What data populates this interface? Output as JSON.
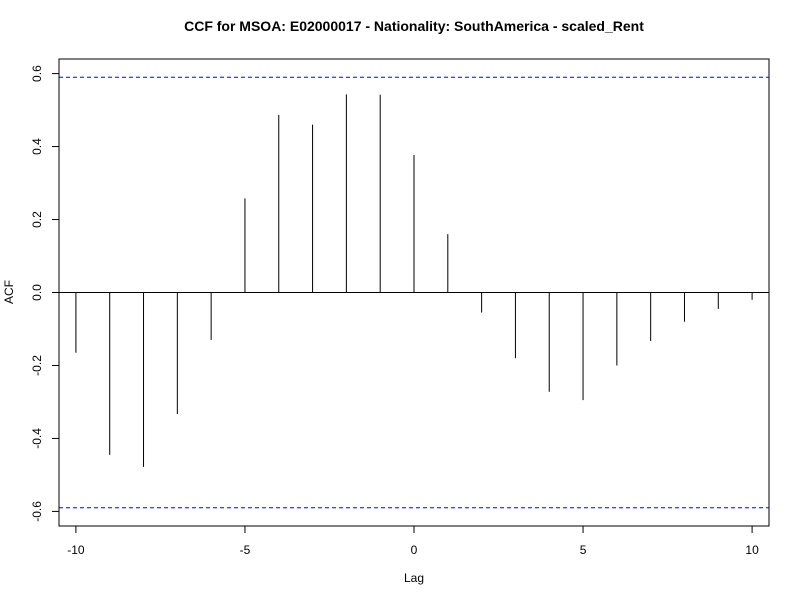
{
  "chart_data": {
    "type": "bar",
    "title": "CCF for MSOA: E02000017 - Nationality: SouthAmerica - scaled_Rent",
    "xlabel": "Lag",
    "ylabel": "ACF",
    "x": [
      -10,
      -9,
      -8,
      -7,
      -6,
      -5,
      -4,
      -3,
      -2,
      -1,
      0,
      1,
      2,
      3,
      4,
      5,
      6,
      7,
      8,
      9,
      10
    ],
    "values": [
      -0.165,
      -0.445,
      -0.478,
      -0.333,
      -0.13,
      0.258,
      0.487,
      0.46,
      0.543,
      0.542,
      0.377,
      0.16,
      -0.055,
      -0.18,
      -0.272,
      -0.295,
      -0.2,
      -0.133,
      -0.08,
      -0.045,
      -0.02
    ],
    "confidence_bound": 0.59,
    "xlim": [
      -10.5,
      10.5
    ],
    "ylim": [
      -0.64,
      0.64
    ],
    "xticks": [
      -10,
      -5,
      0,
      5,
      10
    ],
    "yticks": [
      -0.6,
      -0.4,
      -0.2,
      0.0,
      0.2,
      0.4,
      0.6
    ],
    "xtick_labels": [
      "-10",
      "-5",
      "0",
      "5",
      "10"
    ],
    "ytick_labels": [
      "-0.6",
      "-0.4",
      "-0.2",
      "0.0",
      "0.2",
      "0.4",
      "0.6"
    ],
    "grid": false,
    "colors": {
      "bars": "#000000",
      "confidence": "#0000ff",
      "zero_line": "#000000"
    }
  }
}
